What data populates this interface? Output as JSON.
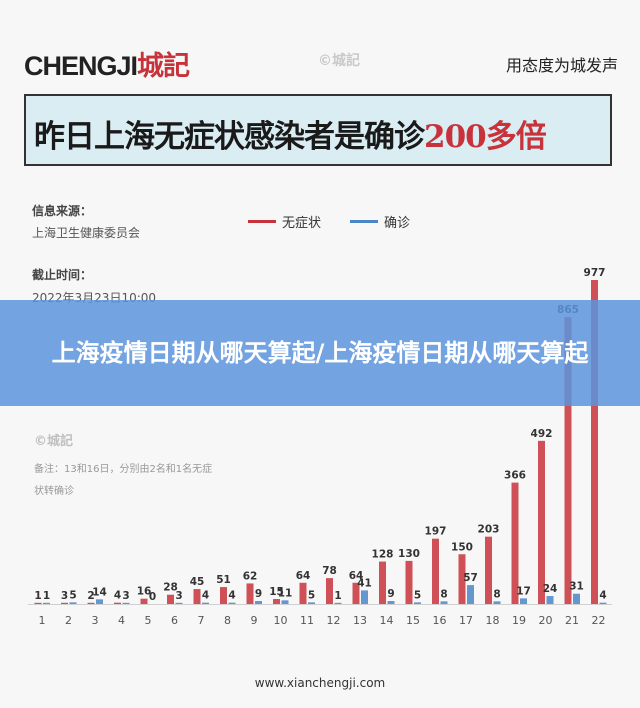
{
  "header": {
    "brand": "CHENGJI",
    "brand_suffix": "城記",
    "watermark": "城記",
    "slogan": "用态度为城发声"
  },
  "headline": {
    "text": "昨日上海无症状感染者是确诊",
    "accent": "200多倍"
  },
  "meta": {
    "source_label": "信息来源：",
    "source_value": "上海卫生健康委员会",
    "time_label": "截止时间：",
    "time_value": "2022年3月23日10:00"
  },
  "banner": {
    "title": "上海疫情日期从哪天算起/上海疫情日期从哪天算起"
  },
  "note": {
    "watermark": "城記",
    "text": "备注：13和16日，分别由2名和1名无症状转确诊"
  },
  "footer": {
    "url": "www.xianchengji.com"
  },
  "colors": {
    "asymptomatic": "#c8323a",
    "confirmed": "#4a86c5"
  },
  "chart_data": {
    "type": "bar",
    "title": "",
    "xlabel": "",
    "ylabel": "",
    "legend_position": "top",
    "grid": false,
    "ylim": [
      0,
      1000
    ],
    "categories": [
      "1",
      "2",
      "3",
      "4",
      "5",
      "6",
      "7",
      "8",
      "9",
      "10",
      "11",
      "12",
      "13",
      "14",
      "15",
      "16",
      "17",
      "18",
      "19",
      "20",
      "21",
      "22"
    ],
    "series": [
      {
        "name": "无症状",
        "color": "#c8323a",
        "values": [
          1,
          3,
          2,
          4,
          16,
          28,
          45,
          51,
          62,
          15,
          64,
          78,
          64,
          128,
          130,
          197,
          150,
          203,
          366,
          492,
          865,
          977
        ]
      },
      {
        "name": "确诊",
        "color": "#4a86c5",
        "values": [
          1,
          5,
          14,
          3,
          0,
          3,
          4,
          4,
          9,
          11,
          5,
          1,
          41,
          9,
          5,
          8,
          57,
          8,
          17,
          24,
          31,
          4
        ]
      }
    ]
  }
}
